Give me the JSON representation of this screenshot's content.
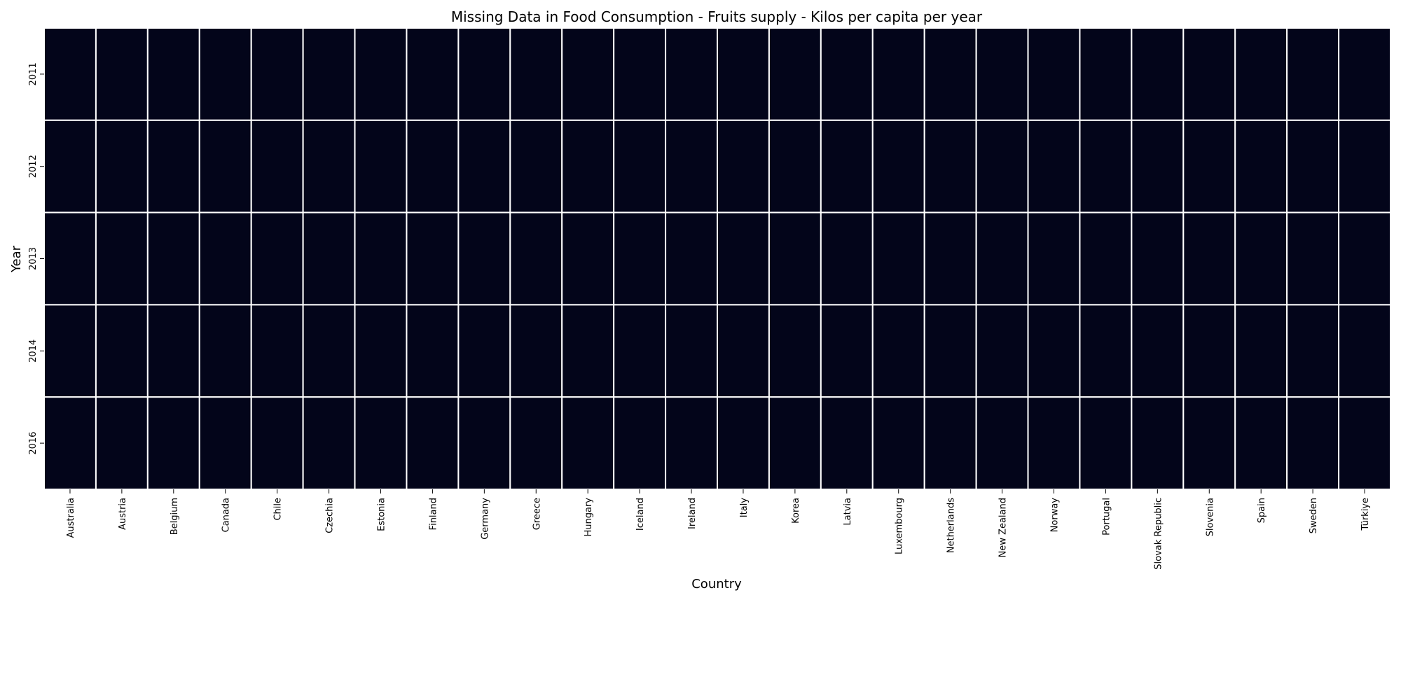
{
  "chart_data": {
    "type": "heatmap",
    "title": "Missing Data in Food Consumption - Fruits supply - Kilos per capita per year",
    "xlabel": "Country",
    "ylabel": "Year",
    "x": [
      "Australia",
      "Austria",
      "Belgium",
      "Canada",
      "Chile",
      "Czechia",
      "Estonia",
      "Finland",
      "Germany",
      "Greece",
      "Hungary",
      "Iceland",
      "Ireland",
      "Italy",
      "Korea",
      "Latvia",
      "Luxembourg",
      "Netherlands",
      "New Zealand",
      "Norway",
      "Portugal",
      "Slovak Republic",
      "Slovenia",
      "Spain",
      "Sweden",
      "Türkiye"
    ],
    "y": [
      "2011",
      "2012",
      "2013",
      "2014",
      "2016"
    ],
    "values": [
      [
        0,
        0,
        0,
        0,
        0,
        0,
        0,
        0,
        0,
        0,
        0,
        0,
        0,
        0,
        0,
        0,
        0,
        0,
        0,
        0,
        0,
        0,
        0,
        0,
        0,
        0
      ],
      [
        0,
        0,
        0,
        0,
        0,
        0,
        0,
        0,
        0,
        0,
        0,
        0,
        0,
        0,
        0,
        0,
        0,
        0,
        0,
        0,
        0,
        0,
        0,
        0,
        0,
        0
      ],
      [
        0,
        0,
        0,
        0,
        0,
        0,
        0,
        0,
        0,
        0,
        0,
        0,
        0,
        0,
        0,
        0,
        0,
        0,
        0,
        0,
        0,
        0,
        0,
        0,
        0,
        0
      ],
      [
        0,
        0,
        0,
        0,
        0,
        0,
        0,
        0,
        0,
        0,
        0,
        0,
        0,
        0,
        0,
        0,
        0,
        0,
        0,
        0,
        0,
        0,
        0,
        0,
        0,
        0
      ],
      [
        0,
        0,
        0,
        0,
        0,
        0,
        0,
        0,
        0,
        0,
        0,
        0,
        0,
        0,
        0,
        0,
        0,
        0,
        0,
        0,
        0,
        0,
        0,
        0,
        0,
        0
      ]
    ],
    "cell_color": "#03051a",
    "grid_line_color": "#ffffff",
    "colorbar": false
  }
}
